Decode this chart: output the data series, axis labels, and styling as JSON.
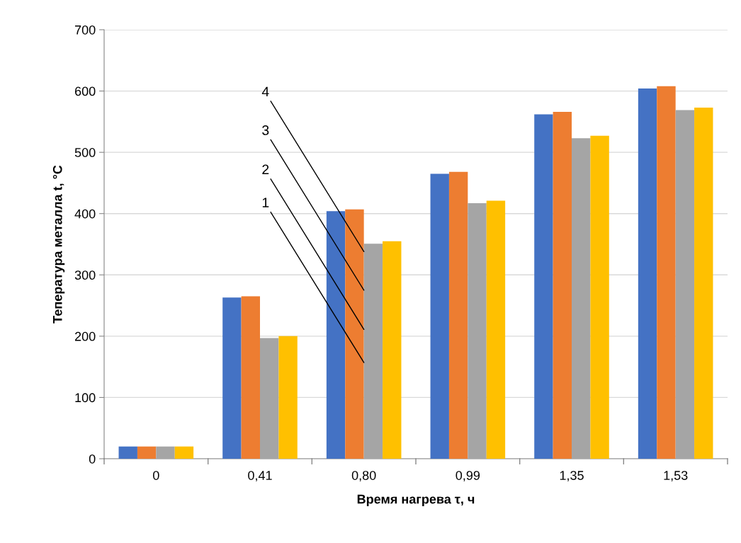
{
  "chart_data": {
    "type": "bar",
    "xlabel": "Время нагрева τ, ч",
    "ylabel": "Тепература металла t, °C",
    "categories": [
      "0",
      "0,41",
      "0,80",
      "0,99",
      "1,35",
      "1,53"
    ],
    "series": [
      {
        "color": "#4472c4",
        "values": [
          20,
          263,
          404,
          465,
          562,
          604
        ]
      },
      {
        "color": "#ed7d31",
        "values": [
          20,
          265,
          407,
          468,
          566,
          608
        ]
      },
      {
        "color": "#a5a5a5",
        "values": [
          20,
          197,
          351,
          417,
          523,
          569
        ]
      },
      {
        "color": "#ffc000",
        "values": [
          20,
          200,
          355,
          421,
          527,
          573
        ]
      }
    ],
    "ylim": [
      0,
      700
    ],
    "yticks": [
      0,
      100,
      200,
      300,
      400,
      500,
      600,
      700
    ],
    "grid": "y",
    "legend": false,
    "annotations": [
      {
        "text": "1",
        "x": "0,80",
        "y": 157
      },
      {
        "text": "2",
        "x": "0,80",
        "y": 211
      },
      {
        "text": "3",
        "x": "0,80",
        "y": 275
      },
      {
        "text": "4",
        "x": "0,80",
        "y": 338
      }
    ]
  }
}
